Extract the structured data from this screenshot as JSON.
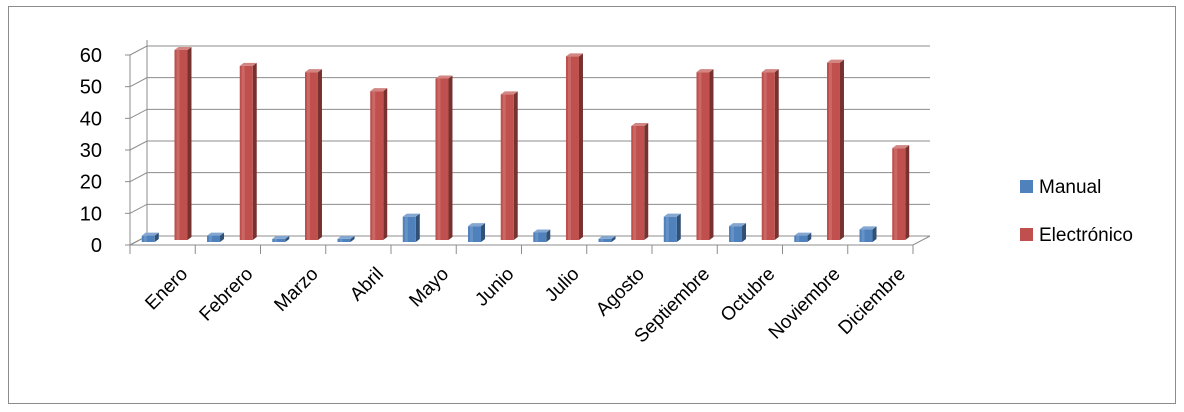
{
  "chart_data": {
    "type": "bar",
    "title": "",
    "xlabel": "",
    "ylabel": "",
    "ylim": [
      0,
      60
    ],
    "y_ticks": [
      0,
      10,
      20,
      30,
      40,
      50,
      60
    ],
    "categories": [
      "Enero",
      "Febrero",
      "Marzo",
      "Abril",
      "Mayo",
      "Junio",
      "Julio",
      "Agosto",
      "Septiembre",
      "Octubre",
      "Noviembre",
      "Diciembre"
    ],
    "series": [
      {
        "name": "Manual",
        "color": "#4f81bd",
        "values": [
          2,
          2,
          1,
          1,
          8,
          5,
          3,
          1,
          8,
          5,
          2,
          4
        ]
      },
      {
        "name": "Electrónico",
        "color": "#c0504d",
        "values": [
          60,
          55,
          53,
          47,
          51,
          46,
          58,
          36,
          53,
          53,
          56,
          29
        ]
      }
    ],
    "grid": true,
    "legend_position": "right",
    "style": "3d-clustered-column"
  }
}
